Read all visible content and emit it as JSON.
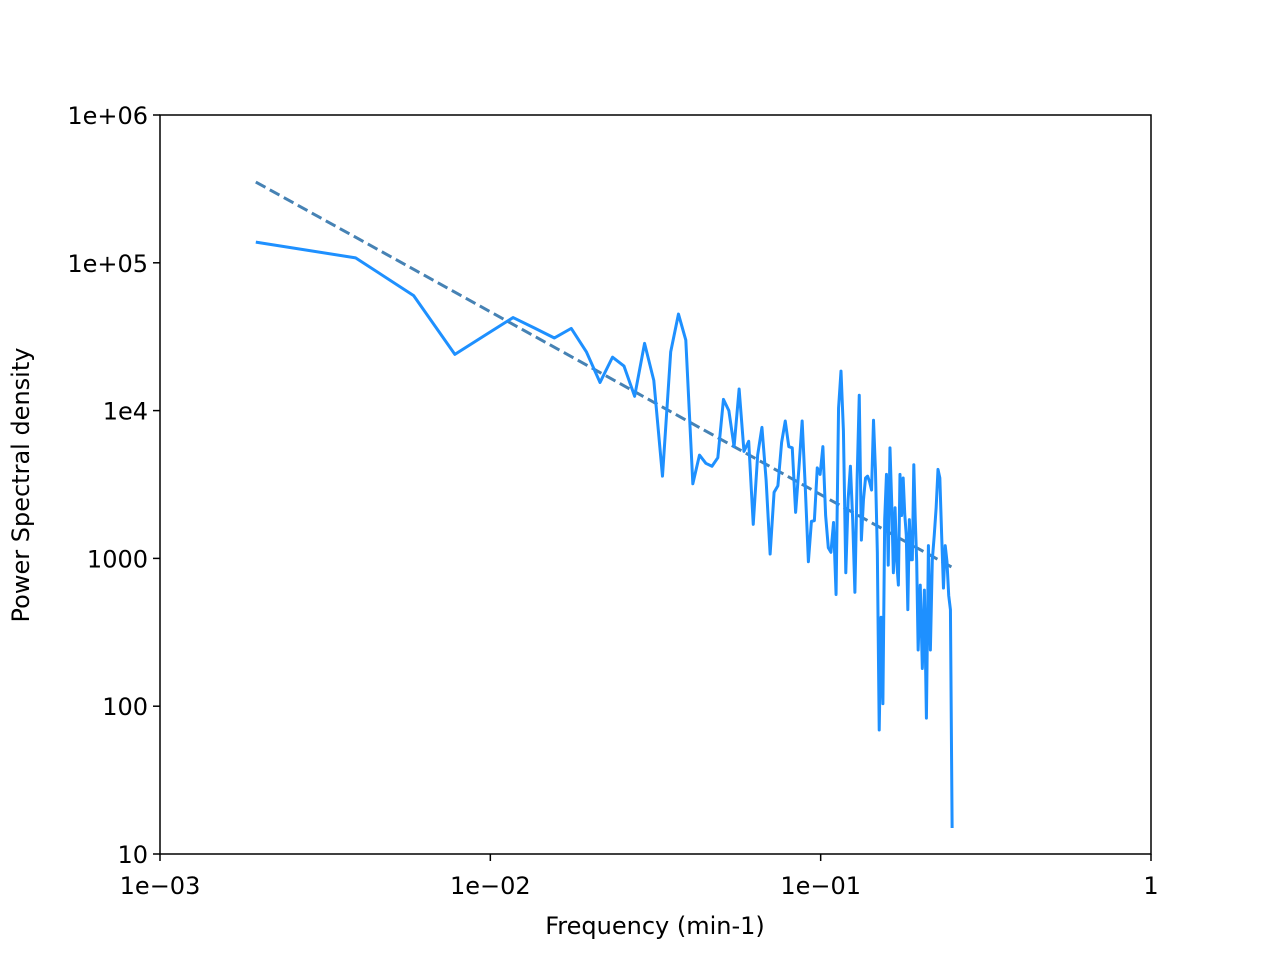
{
  "chart_data": {
    "type": "line",
    "x_label": "Frequency (min-1)",
    "y_label": "Power Spectral density",
    "x_log": true,
    "y_log": true,
    "xlim": [
      0.001,
      1
    ],
    "ylim": [
      10,
      1000000
    ],
    "xticks": [
      {
        "value": 0.001,
        "label": "1e−03"
      },
      {
        "value": 0.01,
        "label": "1e−02"
      },
      {
        "value": 0.1,
        "label": "1e−01"
      },
      1
    ],
    "yticks": [
      10,
      100,
      1000,
      {
        "value": 10000,
        "label": "1e4"
      },
      {
        "value": 100000,
        "label": "1e+05"
      },
      {
        "value": 1000000,
        "label": "1e+06"
      }
    ],
    "x": [
      0.00195,
      0.00391,
      0.00586,
      0.00781,
      0.00977,
      0.01172,
      0.01367,
      0.01563,
      0.01758,
      0.01953,
      0.02148,
      0.02344,
      0.02539,
      0.02734,
      0.0293,
      0.03125,
      0.0332,
      0.03516,
      0.03711,
      0.03906,
      0.04102,
      0.04297,
      0.04492,
      0.04688,
      0.04883,
      0.05078,
      0.05273,
      0.05469,
      0.05664,
      0.05859,
      0.06055,
      0.0625,
      0.06445,
      0.06641,
      0.06836,
      0.07031,
      0.07227,
      0.07422,
      0.07617,
      0.07813,
      0.08008,
      0.08203,
      0.08398,
      0.08594,
      0.08789,
      0.08984,
      0.0918,
      0.09375,
      0.0957,
      0.09766,
      0.09961,
      0.10156,
      0.10352,
      0.10547,
      0.10742,
      0.10938,
      0.11133,
      0.11328,
      0.11523,
      0.11719,
      0.11914,
      0.12109,
      0.12305,
      0.125,
      0.12695,
      0.12891,
      0.13086,
      0.13281,
      0.13477,
      0.13672,
      0.13867,
      0.14063,
      0.14258,
      0.14453,
      0.14648,
      0.14844,
      0.15039,
      0.15234,
      0.1543,
      0.15625,
      0.1582,
      0.16016,
      0.16211,
      0.16406,
      0.16602,
      0.16797,
      0.16992,
      0.17188,
      0.17383,
      0.17578,
      0.17773,
      0.17969,
      0.18164,
      0.18359,
      0.18555,
      0.1875,
      0.18945,
      0.19141,
      0.19336,
      0.19531,
      0.19727,
      0.2002,
      0.20313,
      0.20605,
      0.20898,
      0.21191,
      0.21484,
      0.21777,
      0.2207,
      0.22363,
      0.22656,
      0.22949,
      0.23242,
      0.23535,
      0.23828,
      0.24121,
      0.24414,
      0.24707,
      0.25
    ],
    "series": [
      {
        "color": "#1e90ff",
        "values": [
          138000,
          108000,
          60000,
          24000,
          33000,
          42600,
          36000,
          31000,
          36000,
          25000,
          15500,
          23000,
          20000,
          12500,
          28500,
          16000,
          3600,
          25000,
          45000,
          30000,
          3200,
          5000,
          4400,
          4200,
          4800,
          11900,
          10000,
          5700,
          14000,
          5300,
          6200,
          1700,
          5000,
          7700,
          3400,
          1070,
          2800,
          3100,
          6100,
          8500,
          5700,
          5600,
          2050,
          4100,
          8500,
          3000,
          950,
          1780,
          1800,
          4100,
          3700,
          5700,
          1950,
          1180,
          1100,
          1750,
          570,
          10400,
          18500,
          7300,
          800,
          2500,
          4200,
          1830,
          590,
          3400,
          12700,
          1330,
          2500,
          3500,
          3600,
          3300,
          2900,
          8600,
          4000,
          1100,
          69,
          400,
          104,
          1830,
          3700,
          900,
          5600,
          2400,
          800,
          2200,
          950,
          660,
          3700,
          1950,
          3500,
          2000,
          1430,
          450,
          1830,
          980,
          980,
          4300,
          1830,
          950,
          240,
          660,
          180,
          610,
          83,
          1220,
          240,
          980,
          1430,
          2200,
          4000,
          3500,
          1430,
          630,
          1220,
          950,
          560,
          450,
          15
        ]
      }
    ],
    "fit": {
      "x": [
        0.00195,
        0.25
      ],
      "values": [
        352000,
        870
      ],
      "color": "#4682b4",
      "dashed": true
    }
  }
}
